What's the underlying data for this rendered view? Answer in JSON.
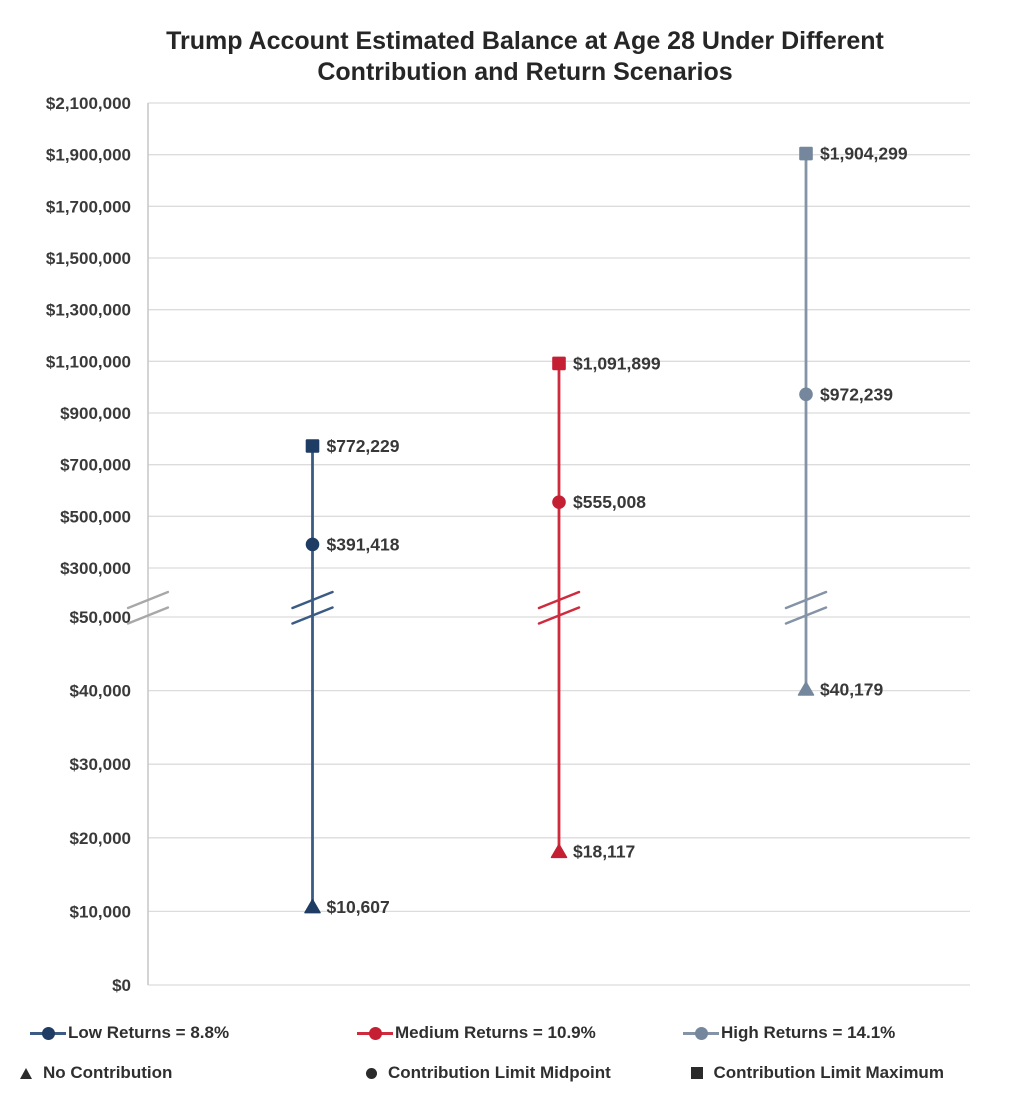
{
  "title": {
    "line1": "Trump Account Estimated Balance at Age 28 Under Different",
    "line2": "Contribution and Return Scenarios"
  },
  "chart_data": {
    "type": "scatter",
    "subtype": "vertical-range-dot-plot-with-broken-y-axis",
    "title": "Trump Account Estimated Balance at Age 28 Under Different Contribution and Return Scenarios",
    "x_categories": [
      "Low Returns = 8.8%",
      "Medium Returns = 10.9%",
      "High Returns = 14.1%"
    ],
    "marker_levels": [
      {
        "level": "No Contribution",
        "marker": "triangle"
      },
      {
        "level": "Contribution Limit Midpoint",
        "marker": "circle"
      },
      {
        "level": "Contribution Limit Maximum",
        "marker": "square"
      }
    ],
    "series": [
      {
        "name": "Low Returns = 8.8%",
        "marker_color": "#1f3c64",
        "line_color": "#3a5c84",
        "points": [
          {
            "level": "No Contribution",
            "marker": "triangle",
            "value": 10607,
            "label": "$10,607"
          },
          {
            "level": "Contribution Limit Midpoint",
            "marker": "circle",
            "value": 391418,
            "label": "$391,418"
          },
          {
            "level": "Contribution Limit Maximum",
            "marker": "square",
            "value": 772229,
            "label": "$772,229"
          }
        ]
      },
      {
        "name": "Medium Returns = 10.9%",
        "marker_color": "#c51f33",
        "line_color": "#ce2b3e",
        "points": [
          {
            "level": "No Contribution",
            "marker": "triangle",
            "value": 18117,
            "label": "$18,117"
          },
          {
            "level": "Contribution Limit Midpoint",
            "marker": "circle",
            "value": 555008,
            "label": "$555,008"
          },
          {
            "level": "Contribution Limit Maximum",
            "marker": "square",
            "value": 1091899,
            "label": "$1,091,899"
          }
        ]
      },
      {
        "name": "High Returns = 14.1%",
        "marker_color": "#75879c",
        "line_color": "#8493a6",
        "points": [
          {
            "level": "No Contribution",
            "marker": "triangle",
            "value": 40179,
            "label": "$40,179"
          },
          {
            "level": "Contribution Limit Midpoint",
            "marker": "circle",
            "value": 972239,
            "label": "$972,239"
          },
          {
            "level": "Contribution Limit Maximum",
            "marker": "square",
            "value": 1904299,
            "label": "$1,904,299"
          }
        ]
      }
    ],
    "y_axis": {
      "axis_break": true,
      "upper_range": [
        300000,
        2100000
      ],
      "lower_range": [
        0,
        50000
      ],
      "upper_ticks": [
        {
          "value": 2100000,
          "label": "$2,100,000"
        },
        {
          "value": 1900000,
          "label": "$1,900,000"
        },
        {
          "value": 1700000,
          "label": "$1,700,000"
        },
        {
          "value": 1500000,
          "label": "$1,500,000"
        },
        {
          "value": 1300000,
          "label": "$1,300,000"
        },
        {
          "value": 1100000,
          "label": "$1,100,000"
        },
        {
          "value": 900000,
          "label": "$900,000"
        },
        {
          "value": 700000,
          "label": "$700,000"
        },
        {
          "value": 500000,
          "label": "$500,000"
        },
        {
          "value": 300000,
          "label": "$300,000"
        }
      ],
      "lower_ticks": [
        {
          "value": 50000,
          "label": "$50,000"
        },
        {
          "value": 40000,
          "label": "$40,000"
        },
        {
          "value": 30000,
          "label": "$30,000"
        },
        {
          "value": 20000,
          "label": "$20,000"
        },
        {
          "value": 10000,
          "label": "$10,000"
        },
        {
          "value": 0,
          "label": "$0"
        }
      ]
    },
    "grid": true,
    "legend_position": "bottom"
  },
  "legend": {
    "returns": [
      {
        "label": "Low Returns = 8.8%"
      },
      {
        "label": "Medium Returns = 10.9%"
      },
      {
        "label": "High Returns = 14.1%"
      }
    ],
    "contributions": [
      {
        "label": "No Contribution",
        "marker": "triangle"
      },
      {
        "label": "Contribution Limit Midpoint",
        "marker": "circle"
      },
      {
        "label": "Contribution Limit Maximum",
        "marker": "square"
      }
    ],
    "marker_color": "#2b2b2b"
  },
  "colors": {
    "grid": "#dcdcdc",
    "axis": "#c6c6c6",
    "axis_break": "#a8a8a8",
    "text": "#3a3a3a"
  }
}
